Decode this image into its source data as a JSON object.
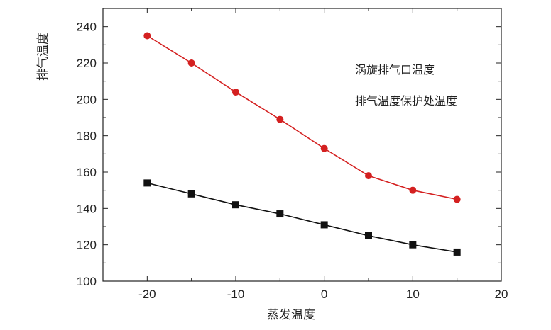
{
  "chart_data": {
    "type": "line",
    "title": "",
    "xlabel": "蒸发温度",
    "ylabel": "排气温度",
    "xlim": [
      -25,
      20
    ],
    "ylim": [
      100,
      250
    ],
    "xticks": [
      -20,
      -10,
      0,
      10,
      20
    ],
    "yticks": [
      100,
      120,
      140,
      160,
      180,
      200,
      220,
      240
    ],
    "x": [
      -20,
      -15,
      -10,
      -5,
      0,
      5,
      10,
      15
    ],
    "legend_placement": "top-right",
    "grid": false,
    "series": [
      {
        "name": "涡旋排气口温度",
        "color": "#d42020",
        "marker": "circle",
        "values": [
          235,
          220,
          204,
          189,
          173,
          158,
          150,
          145
        ]
      },
      {
        "name": "排气温度保护处温度",
        "color": "#111111",
        "marker": "square",
        "values": [
          154,
          148,
          142,
          137,
          131,
          125,
          120,
          116
        ]
      }
    ]
  }
}
